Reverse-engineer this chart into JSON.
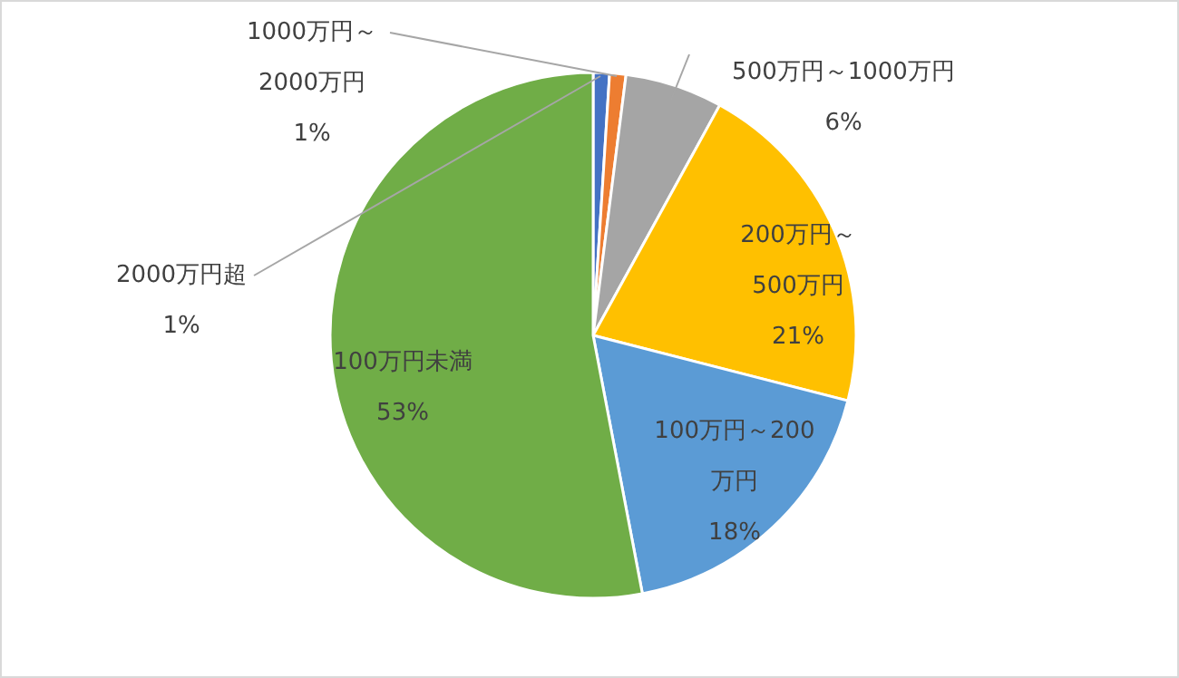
{
  "chart_data": {
    "type": "pie",
    "categories": [
      "2000万円超",
      "1000万円～2000万円",
      "500万円～1000万円",
      "200万円～500万円",
      "100万円～200万円",
      "100万円未満"
    ],
    "values": [
      1,
      1,
      6,
      21,
      18,
      53
    ],
    "value_labels": [
      "1%",
      "1%",
      "6%",
      "21%",
      "18%",
      "53%"
    ],
    "colors": [
      "#4472c4",
      "#ed7d31",
      "#a5a5a5",
      "#ffc000",
      "#5b9bd5",
      "#70ad47"
    ]
  }
}
